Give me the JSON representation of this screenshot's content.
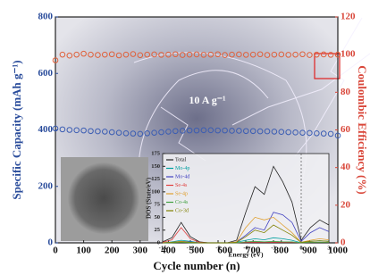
{
  "chart_data": [
    {
      "type": "line",
      "xlabel": "Cycle number (n)",
      "ylabel": "Specific Capacity (mAh g⁻¹)",
      "y2label": "Coulombic Efficiency (%)",
      "annotation": "10 A g⁻¹",
      "xlim": [
        0,
        1000
      ],
      "xticks": [
        0,
        100,
        200,
        300,
        400,
        500,
        600,
        700,
        800,
        900,
        1000
      ],
      "ylim": [
        0,
        800
      ],
      "yticks": [
        0,
        200,
        400,
        600,
        800
      ],
      "y2lim": [
        0,
        120
      ],
      "y2ticks": [
        0,
        20,
        40,
        60,
        80,
        100,
        120
      ],
      "x": [
        0,
        25,
        50,
        75,
        100,
        125,
        150,
        175,
        200,
        225,
        250,
        275,
        300,
        325,
        350,
        375,
        400,
        425,
        450,
        475,
        500,
        525,
        550,
        575,
        600,
        625,
        650,
        675,
        700,
        725,
        750,
        775,
        800,
        825,
        850,
        875,
        900,
        925,
        950,
        975,
        1000
      ],
      "series": [
        {
          "color": "#3b5db3",
          "values": [
            405,
            402,
            400,
            399,
            398,
            396,
            395,
            394,
            392,
            390,
            388,
            387,
            386,
            388,
            390,
            392,
            394,
            396,
            397,
            398,
            398,
            399,
            399,
            398,
            398,
            397,
            397,
            396,
            396,
            395,
            395,
            394,
            393,
            392,
            391,
            390,
            389,
            388,
            387,
            386,
            380
          ]
        },
        {
          "color": "#e0603a",
          "axis": "y2",
          "values": [
            97,
            100,
            99.5,
            100,
            100.5,
            100,
            99.8,
            100,
            100.2,
            99.6,
            100,
            100.3,
            99.7,
            100,
            100.1,
            99.9,
            100,
            100.2,
            99.8,
            100,
            100.1,
            99.9,
            100,
            100.2,
            99.8,
            100,
            100.1,
            99.9,
            100,
            100.2,
            99.8,
            100,
            100.1,
            99.9,
            100,
            100.2,
            99.8,
            100,
            100.1,
            99.9,
            100
          ]
        }
      ]
    },
    {
      "type": "line",
      "xlabel": "Energy (eV)",
      "ylabel": "DOS (State/eV)",
      "xlim": [
        -15,
        3
      ],
      "xticks": [
        -15,
        -12,
        -9,
        -6,
        -3,
        0,
        3
      ],
      "ylim": [
        0,
        175
      ],
      "yticks": [
        0,
        25,
        50,
        75,
        100,
        125,
        150,
        175
      ],
      "x": [
        -15,
        -14,
        -13,
        -12,
        -11,
        -10,
        -9,
        -8,
        -7,
        -6,
        -5,
        -4,
        -3,
        -2,
        -1,
        0,
        1,
        2,
        3
      ],
      "series": [
        {
          "name": "Total",
          "color": "#222222",
          "values": [
            2,
            10,
            40,
            12,
            2,
            0,
            0,
            0,
            5,
            60,
            110,
            95,
            150,
            120,
            80,
            5,
            30,
            45,
            35
          ]
        },
        {
          "name": "Mo-4p",
          "color": "#00a0a0",
          "values": [
            0,
            2,
            5,
            3,
            0,
            0,
            0,
            0,
            1,
            5,
            8,
            6,
            10,
            8,
            5,
            0,
            3,
            4,
            3
          ]
        },
        {
          "name": "Mo-4d",
          "color": "#4040c0",
          "values": [
            0,
            1,
            3,
            2,
            0,
            0,
            0,
            0,
            2,
            15,
            30,
            25,
            60,
            55,
            40,
            3,
            20,
            30,
            22
          ]
        },
        {
          "name": "Se-4s",
          "color": "#e04040",
          "values": [
            1,
            6,
            30,
            8,
            1,
            0,
            0,
            0,
            0,
            1,
            1,
            1,
            1,
            1,
            1,
            0,
            1,
            1,
            1
          ]
        },
        {
          "name": "Se-4p",
          "color": "#e0a030",
          "values": [
            0,
            1,
            3,
            1,
            0,
            0,
            0,
            0,
            2,
            30,
            50,
            45,
            50,
            35,
            20,
            1,
            5,
            8,
            6
          ]
        },
        {
          "name": "Co-4s",
          "color": "#40a040",
          "values": [
            0,
            0,
            1,
            0,
            0,
            0,
            0,
            0,
            0,
            2,
            3,
            2,
            3,
            2,
            2,
            0,
            1,
            1,
            1
          ]
        },
        {
          "name": "Co-3d",
          "color": "#808000",
          "values": [
            0,
            1,
            2,
            1,
            0,
            0,
            0,
            0,
            1,
            12,
            25,
            20,
            35,
            25,
            15,
            1,
            3,
            4,
            3
          ]
        }
      ]
    }
  ]
}
